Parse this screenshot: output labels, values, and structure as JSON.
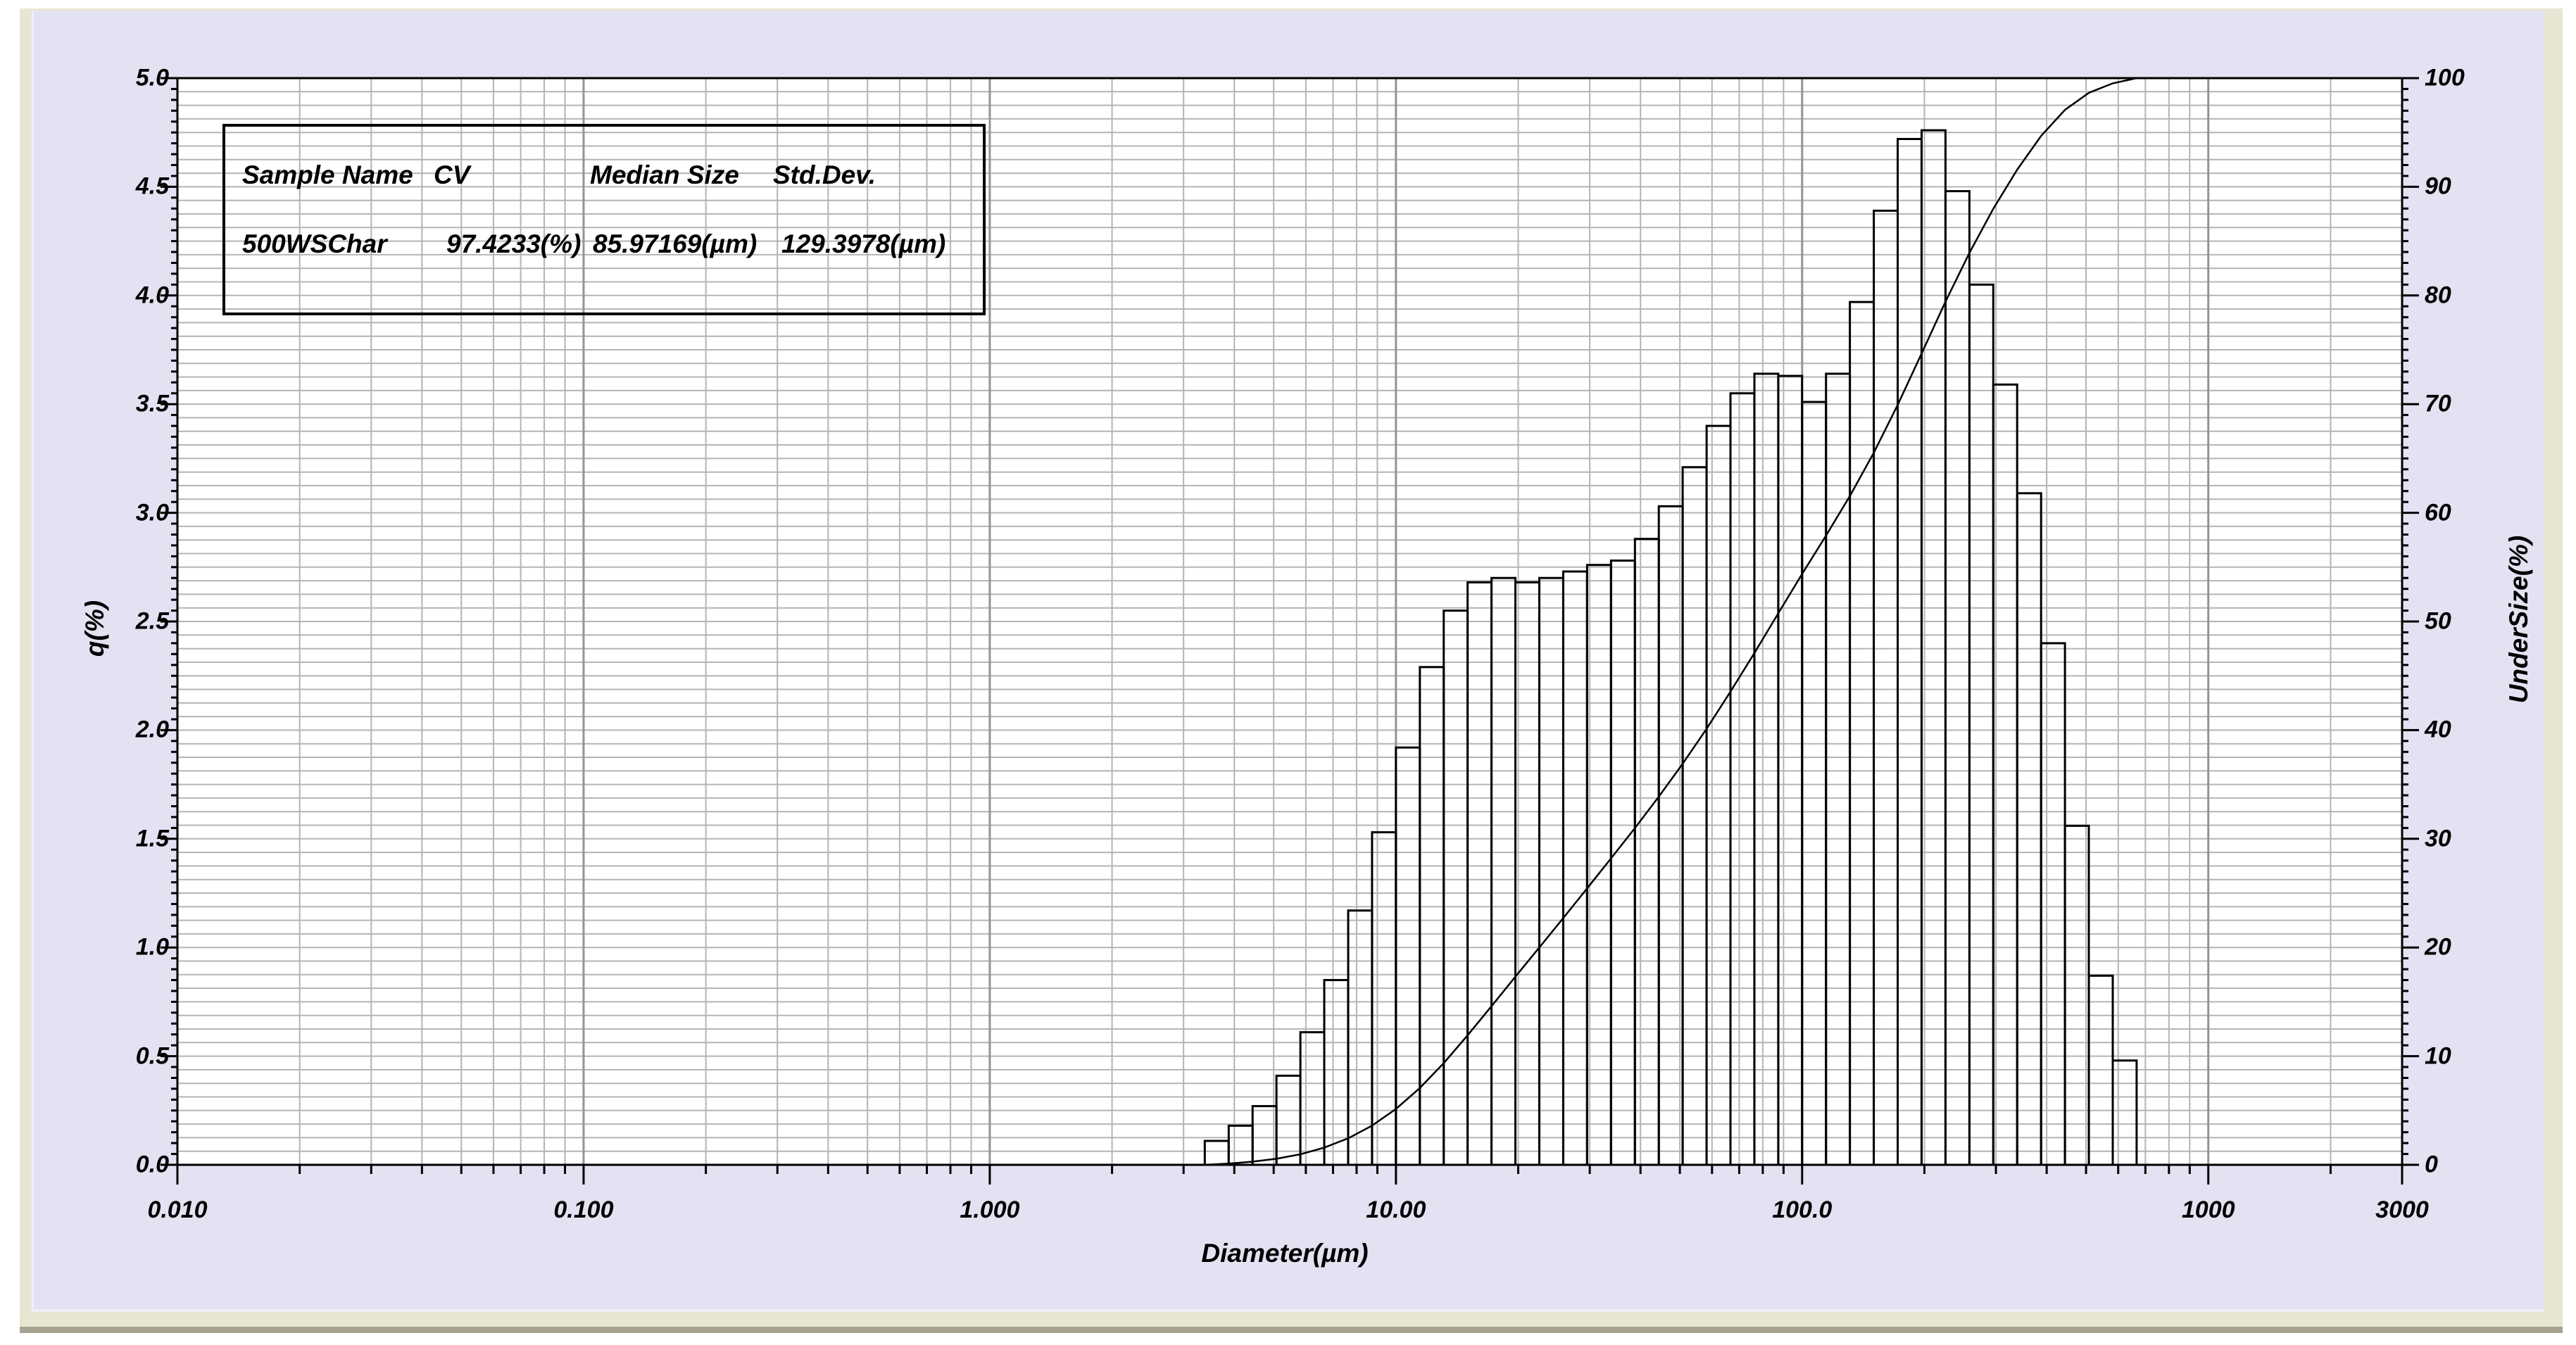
{
  "colors": {
    "page_bg": "#ffffff",
    "panel_bg": "#e9e5d3",
    "panel_bottom_edge": "#a6a392",
    "chart_bg": "#e2e2f2",
    "plot_bg": "#ffffff",
    "grid_minor": "#b4b4b4",
    "grid_decade": "#949494",
    "ink": "#000000"
  },
  "legend": {
    "headers": [
      "Sample Name",
      "CV",
      "Median Size",
      "Std.Dev."
    ],
    "values": [
      "500WSChar",
      "97.4233(%)",
      "85.97169(µm)",
      "129.3978(µm)"
    ]
  },
  "axes": {
    "x": {
      "title": "Diameter(µm)",
      "scale": "log",
      "min": 0.01,
      "max": 3000,
      "tick_values": [
        0.01,
        0.1,
        1,
        10,
        100,
        1000,
        3000
      ],
      "tick_labels": [
        "0.010",
        "0.100",
        "1.000",
        "10.00",
        "100.0",
        "1000",
        "3000"
      ]
    },
    "y_left": {
      "title": "q(%)",
      "min": 0.0,
      "max": 5.0,
      "major_step": 0.5,
      "minor_step": 0.05,
      "tick_labels": [
        "0.0",
        "0.5",
        "1.0",
        "1.5",
        "2.0",
        "2.5",
        "3.0",
        "3.5",
        "4.0",
        "4.5",
        "5.0"
      ]
    },
    "y_right": {
      "title": "UnderSize(%)",
      "min": 0,
      "max": 100,
      "major_step": 10,
      "minor_step": 1,
      "tick_labels": [
        "0",
        "10",
        "20",
        "30",
        "40",
        "50",
        "60",
        "70",
        "80",
        "90",
        "100"
      ]
    },
    "grid_rows": 80
  },
  "chart_data": {
    "type": "histogram+cumulative-line",
    "title": "",
    "xlabel": "Diameter(µm)",
    "ylabel_left": "q(%)",
    "ylabel_right": "UnderSize(%)",
    "x_range_um": [
      0.01,
      3000
    ],
    "q_range": [
      0.0,
      5.0
    ],
    "undersize_range": [
      0,
      100
    ],
    "bin_edges_um": [
      3.384,
      3.875,
      4.437,
      5.08,
      5.817,
      6.661,
      7.627,
      8.733,
      10.0,
      11.45,
      13.11,
      15.012,
      17.19,
      19.684,
      22.539,
      25.81,
      29.555,
      33.843,
      38.753,
      44.375,
      50.813,
      58.186,
      66.628,
      76.294,
      87.364,
      100.0,
      114.5,
      131.1,
      150.12,
      171.9,
      196.84,
      225.39,
      258.1,
      295.55,
      338.43,
      387.53,
      443.75,
      508.13,
      581.86,
      666.28
    ],
    "q_percent": [
      0.11,
      0.18,
      0.27,
      0.41,
      0.61,
      0.85,
      1.17,
      1.53,
      1.92,
      2.29,
      2.55,
      2.68,
      2.7,
      2.68,
      2.7,
      2.73,
      2.76,
      2.78,
      2.88,
      3.03,
      3.21,
      3.4,
      3.55,
      3.64,
      3.63,
      3.51,
      3.64,
      3.97,
      4.39,
      4.72,
      4.76,
      4.48,
      4.05,
      3.59,
      3.09,
      2.4,
      1.56,
      0.87,
      0.48
    ],
    "undersize_percent": [
      0.11,
      0.29,
      0.56,
      0.97,
      1.58,
      2.44,
      3.61,
      5.14,
      7.07,
      9.36,
      11.92,
      14.6,
      17.31,
      20.0,
      22.7,
      25.44,
      28.2,
      30.99,
      33.88,
      36.91,
      40.13,
      43.54,
      47.1,
      50.75,
      54.38,
      57.9,
      61.55,
      65.53,
      69.93,
      74.66,
      79.43,
      83.92,
      87.98,
      91.58,
      94.68,
      97.08,
      98.65,
      99.52,
      100.0
    ],
    "stats": {
      "sample_name": "500WSChar",
      "cv_percent": "97.4233",
      "median_size_um": "85.97169",
      "std_dev_um": "129.3978"
    },
    "legend_position": "top-left",
    "grid": "on"
  }
}
